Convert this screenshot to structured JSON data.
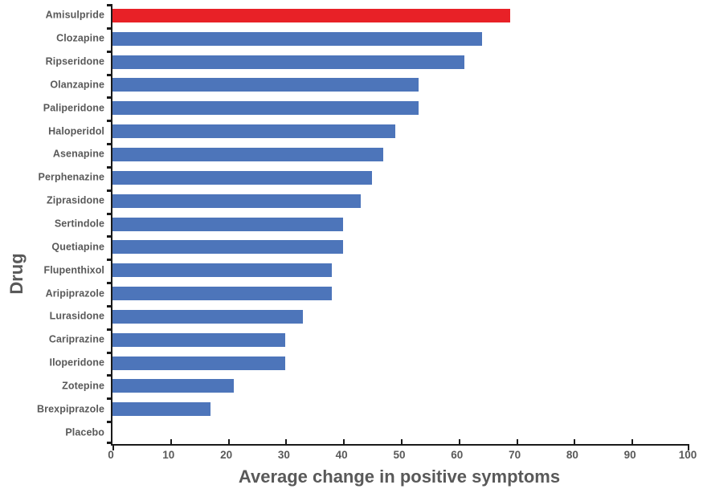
{
  "chart_data": {
    "type": "bar",
    "orientation": "horizontal",
    "title": "",
    "xlabel": "Average change in positive symptoms",
    "ylabel": "Drug",
    "categories": [
      "Amisulpride",
      "Clozapine",
      "Ripseridone",
      "Olanzapine",
      "Paliperidone",
      "Haloperidol",
      "Asenapine",
      "Perphenazine",
      "Ziprasidone",
      "Sertindole",
      "Quetiapine",
      "Flupenthixol",
      "Aripiprazole",
      "Lurasidone",
      "Cariprazine",
      "Iloperidone",
      "Zotepine",
      "Brexpiprazole",
      "Placebo"
    ],
    "values": [
      69,
      64,
      61,
      53,
      53,
      49,
      47,
      45,
      43,
      40,
      40,
      38,
      38,
      33,
      30,
      30,
      21,
      17,
      0
    ],
    "highlight_index": 0,
    "xlim": [
      0,
      100
    ],
    "xticks": [
      0,
      10,
      20,
      30,
      40,
      50,
      60,
      70,
      80,
      90,
      100
    ],
    "grid": false,
    "legend": null,
    "colors": {
      "bar": "#4d75ba",
      "highlight": "#e82127",
      "axis": "#1a1a1a",
      "text": "#595959"
    }
  }
}
